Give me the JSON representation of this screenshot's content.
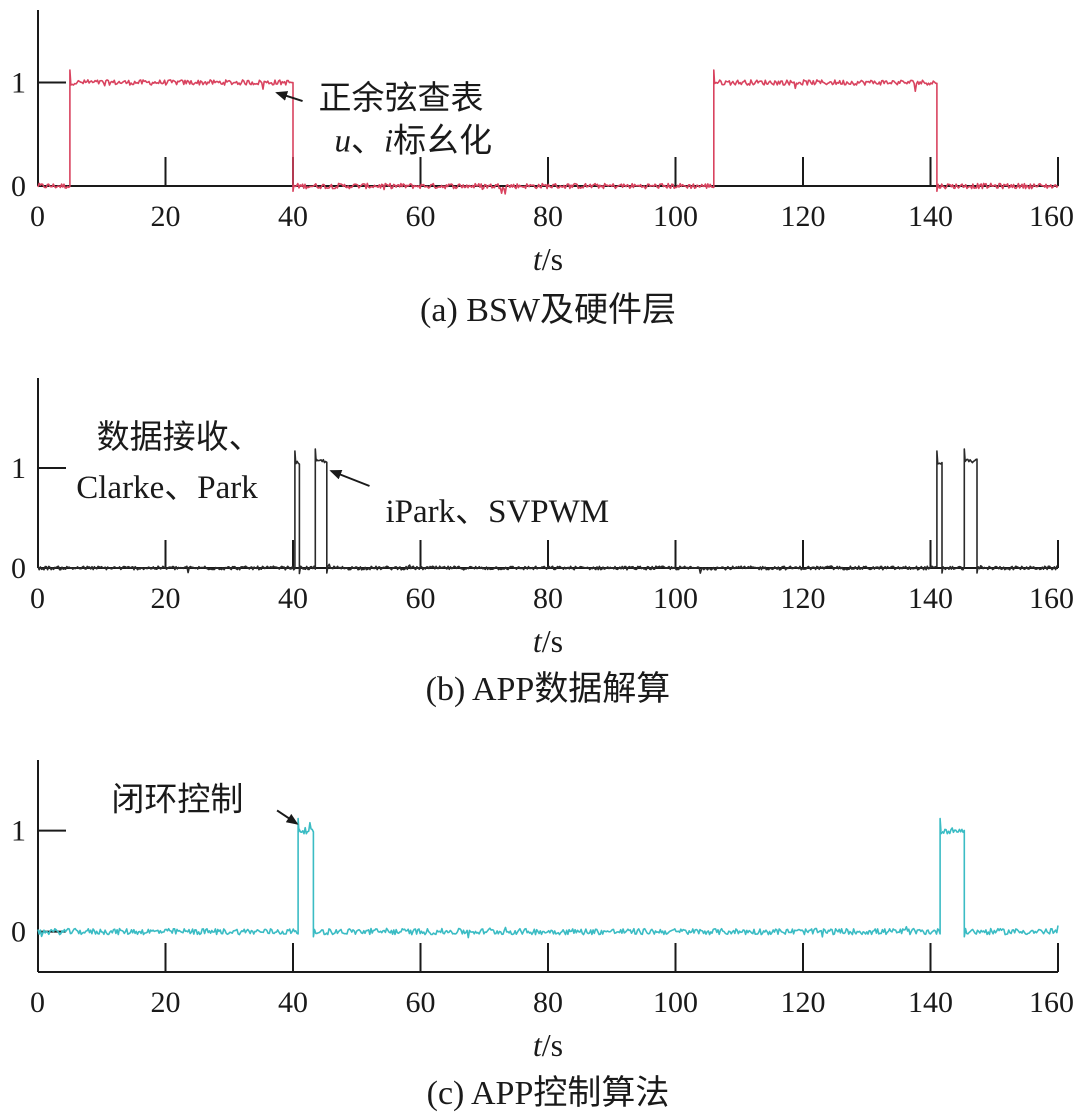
{
  "chart_data": [
    {
      "type": "line",
      "id": "a",
      "caption": "(a) BSW及硬件层",
      "xlabel_var": "t",
      "xlabel_unit": "/s",
      "ylabel": "",
      "xlim": [
        0,
        160
      ],
      "ylim": [
        0,
        1.7
      ],
      "xticks": [
        "0",
        "20",
        "40",
        "60",
        "80",
        "100",
        "120",
        "140",
        "160"
      ],
      "yticks": [
        "0",
        "1"
      ],
      "color": "#d9435f",
      "noise": 0.025,
      "series": [
        {
          "name": "BSW及硬件层",
          "x": [
            0,
            5,
            5,
            40,
            40,
            106,
            106,
            141,
            141,
            160
          ],
          "y": [
            0,
            0,
            1,
            1,
            0,
            0,
            1,
            1,
            0,
            0
          ]
        }
      ],
      "annotations": [
        {
          "lines": [
            "正余弦查表"
          ],
          "text_x": 44,
          "text_y": 0.86
        },
        {
          "lines": [
            "u、i标幺化"
          ],
          "text_x": 46.5,
          "text_y": 0.45
        },
        {
          "arrow_from_x": 41.5,
          "arrow_from_y": 0.82,
          "arrow_to_x": 37.5,
          "arrow_to_y": 0.9
        }
      ]
    },
    {
      "type": "line",
      "id": "b",
      "caption": "(b) APP数据解算",
      "xlabel_var": "t",
      "xlabel_unit": "/s",
      "ylabel": "",
      "xlim": [
        0,
        160
      ],
      "ylim": [
        0,
        1.9
      ],
      "xticks": [
        "0",
        "20",
        "40",
        "60",
        "80",
        "100",
        "120",
        "140",
        "160"
      ],
      "yticks": [
        "0",
        "1"
      ],
      "color": "#2a2a2a",
      "noise": 0.018,
      "series": [
        {
          "name": "APP数据解算",
          "x": [
            0,
            40.3,
            40.3,
            41,
            41,
            43.5,
            43.5,
            45.3,
            45.3,
            141,
            141,
            141.8,
            141.8,
            145.3,
            145.3,
            147.3,
            147.3,
            160
          ],
          "y": [
            0,
            0,
            1.05,
            1.05,
            0,
            0,
            1.07,
            1.07,
            0,
            0,
            1.05,
            1.05,
            0,
            0,
            1.07,
            1.07,
            0,
            0
          ]
        }
      ],
      "annotations": [
        {
          "lines": [
            "数据接收、"
          ],
          "text_x": 9.2,
          "text_y": 1.32
        },
        {
          "lines": [
            "Clarke、Park"
          ],
          "text_x": 6,
          "text_y": 0.82
        },
        {
          "lines": [
            "iPark、SVPWM"
          ],
          "text_x": 54.5,
          "text_y": 0.58
        },
        {
          "arrow_from_x": 52,
          "arrow_from_y": 0.82,
          "arrow_to_x": 46,
          "arrow_to_y": 0.97
        }
      ]
    },
    {
      "type": "line",
      "id": "c",
      "caption": "(c) APP控制算法",
      "xlabel_var": "t",
      "xlabel_unit": "/s",
      "ylabel": "",
      "xlim": [
        0,
        160
      ],
      "ylim": [
        -0.4,
        1.7
      ],
      "xticks": [
        "0",
        "20",
        "40",
        "60",
        "80",
        "100",
        "120",
        "140",
        "160"
      ],
      "yticks": [
        "0",
        "1"
      ],
      "color": "#3bbcc4",
      "noise": 0.03,
      "series": [
        {
          "name": "APP控制算法",
          "x": [
            0,
            40.8,
            40.8,
            43.2,
            43.2,
            141.5,
            141.5,
            145.3,
            145.3,
            160
          ],
          "y": [
            0,
            0,
            1,
            1,
            0,
            0,
            1,
            1,
            0,
            0
          ]
        }
      ],
      "annotations": [
        {
          "lines": [
            "闭环控制"
          ],
          "text_x": 11.5,
          "text_y": 1.32
        },
        {
          "arrow_from_x": 37.5,
          "arrow_from_y": 1.2,
          "arrow_to_x": 40.6,
          "arrow_to_y": 1.07
        }
      ]
    }
  ]
}
